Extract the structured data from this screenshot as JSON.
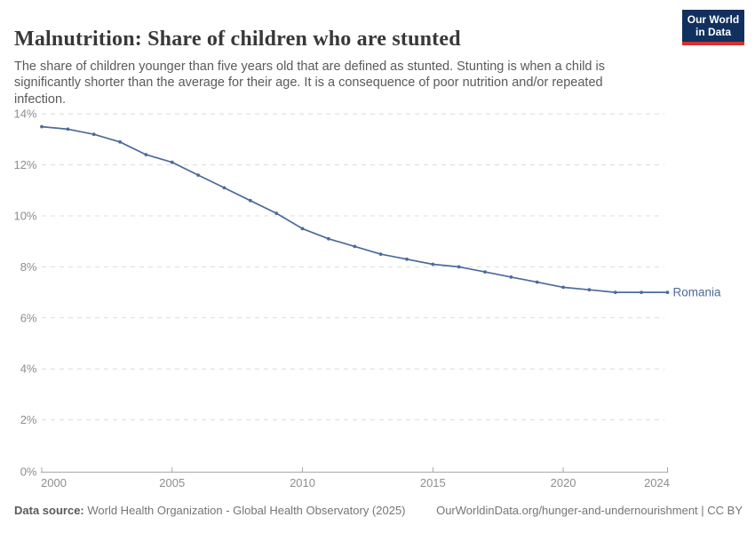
{
  "header": {
    "title": "Malnutrition: Share of children who are stunted",
    "subtitle": "The share of children younger than five years old that are defined as stunted. Stunting is when a child is significantly shorter than the average for their age. It is a consequence of poor nutrition and/or repeated infection.",
    "logo": {
      "line1": "Our World",
      "line2": "in Data"
    }
  },
  "chart_data": {
    "type": "line",
    "title": "Malnutrition: Share of children who are stunted",
    "x": [
      2000,
      2001,
      2002,
      2003,
      2004,
      2005,
      2006,
      2007,
      2008,
      2009,
      2010,
      2011,
      2012,
      2013,
      2014,
      2015,
      2016,
      2017,
      2018,
      2019,
      2020,
      2021,
      2022,
      2023,
      2024
    ],
    "series": [
      {
        "name": "Romania",
        "color": "#4C6A9C",
        "values": [
          13.5,
          13.4,
          13.2,
          12.9,
          12.4,
          12.1,
          11.6,
          11.1,
          10.6,
          10.1,
          9.5,
          9.1,
          8.8,
          8.5,
          8.3,
          8.1,
          8.0,
          7.8,
          7.6,
          7.4,
          7.2,
          7.1,
          7.0,
          7.0,
          7.0
        ]
      }
    ],
    "x_ticks": [
      2000,
      2005,
      2010,
      2015,
      2020,
      2024
    ],
    "y_ticks": [
      0,
      2,
      4,
      6,
      8,
      10,
      12,
      14
    ],
    "y_tick_suffix": "%",
    "xlim": [
      2000,
      2024
    ],
    "ylim": [
      0,
      14
    ],
    "grid": "horizontal-dashed",
    "legend_position": "end-of-line",
    "end_label": "Romania",
    "xlabel": "",
    "ylabel": ""
  },
  "colors": {
    "line": "#4C6A9C",
    "gridline": "#DCDCDC",
    "axis": "#A8A8A8",
    "tick_label": "#8E8E8E",
    "logo_bg": "#12305E",
    "logo_bar": "#D5312F"
  },
  "footer": {
    "source_label": "Data source:",
    "source_text": " World Health Organization - Global Health Observatory (2025)",
    "link_text": "OurWorldinData.org/hunger-and-undernourishment | CC BY"
  }
}
